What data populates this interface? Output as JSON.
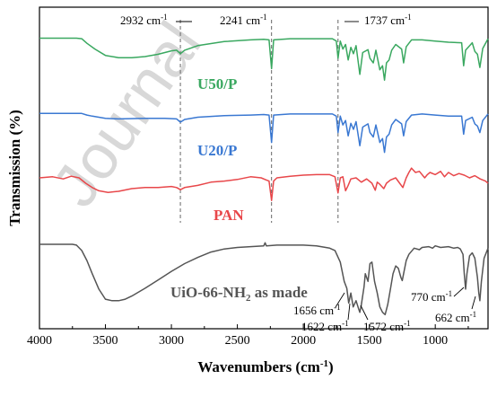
{
  "chart_data": {
    "type": "line",
    "xlabel": "Wavenumbers (cm",
    "xlabel_sup": "-1",
    "xlabel_end": ")",
    "ylabel": "Transmission (%)",
    "xlim": [
      4000,
      600
    ],
    "x_reversed": true,
    "xticks": [
      "4000",
      "3500",
      "3000",
      "2500",
      "2000",
      "1500",
      "1000"
    ],
    "xtick_values": [
      4000,
      3500,
      3000,
      2500,
      2000,
      1500,
      1000
    ],
    "y_tick_labels": false,
    "watermark": "Journal",
    "series": [
      {
        "name": "U50/P",
        "color": "#3aa860",
        "label_parts": [
          "U50/P"
        ],
        "points": [
          [
            4000,
            0.93
          ],
          [
            3800,
            0.93
          ],
          [
            3720,
            0.93
          ],
          [
            3680,
            0.92
          ],
          [
            3640,
            0.84
          ],
          [
            3580,
            0.74
          ],
          [
            3500,
            0.63
          ],
          [
            3400,
            0.59
          ],
          [
            3300,
            0.59
          ],
          [
            3200,
            0.61
          ],
          [
            3100,
            0.65
          ],
          [
            3000,
            0.71
          ],
          [
            2960,
            0.72
          ],
          [
            2932,
            0.66
          ],
          [
            2900,
            0.72
          ],
          [
            2800,
            0.8
          ],
          [
            2600,
            0.87
          ],
          [
            2400,
            0.9
          ],
          [
            2300,
            0.91
          ],
          [
            2260,
            0.9
          ],
          [
            2241,
            0.4
          ],
          [
            2225,
            0.9
          ],
          [
            2100,
            0.92
          ],
          [
            1900,
            0.92
          ],
          [
            1780,
            0.92
          ],
          [
            1750,
            0.88
          ],
          [
            1737,
            0.58
          ],
          [
            1720,
            0.88
          ],
          [
            1700,
            0.74
          ],
          [
            1680,
            0.82
          ],
          [
            1660,
            0.55
          ],
          [
            1640,
            0.77
          ],
          [
            1620,
            0.66
          ],
          [
            1600,
            0.8
          ],
          [
            1572,
            0.3
          ],
          [
            1550,
            0.68
          ],
          [
            1510,
            0.73
          ],
          [
            1495,
            0.58
          ],
          [
            1470,
            0.5
          ],
          [
            1450,
            0.72
          ],
          [
            1420,
            0.38
          ],
          [
            1400,
            0.45
          ],
          [
            1385,
            0.2
          ],
          [
            1370,
            0.5
          ],
          [
            1350,
            0.55
          ],
          [
            1330,
            0.72
          ],
          [
            1300,
            0.82
          ],
          [
            1255,
            0.74
          ],
          [
            1240,
            0.5
          ],
          [
            1220,
            0.78
          ],
          [
            1180,
            0.9
          ],
          [
            1100,
            0.9
          ],
          [
            1000,
            0.88
          ],
          [
            900,
            0.86
          ],
          [
            800,
            0.85
          ],
          [
            785,
            0.45
          ],
          [
            770,
            0.72
          ],
          [
            720,
            0.85
          ],
          [
            700,
            0.7
          ],
          [
            680,
            0.65
          ],
          [
            662,
            0.42
          ],
          [
            640,
            0.75
          ],
          [
            600,
            0.92
          ]
        ]
      },
      {
        "name": "U20/P",
        "color": "#3a78d2",
        "label_parts": [
          "U20/P"
        ],
        "points": [
          [
            4000,
            0.93
          ],
          [
            3800,
            0.93
          ],
          [
            3680,
            0.93
          ],
          [
            3640,
            0.9
          ],
          [
            3600,
            0.88
          ],
          [
            3500,
            0.84
          ],
          [
            3400,
            0.83
          ],
          [
            3200,
            0.84
          ],
          [
            3050,
            0.84
          ],
          [
            2960,
            0.83
          ],
          [
            2932,
            0.77
          ],
          [
            2900,
            0.82
          ],
          [
            2800,
            0.86
          ],
          [
            2600,
            0.89
          ],
          [
            2400,
            0.9
          ],
          [
            2300,
            0.91
          ],
          [
            2260,
            0.9
          ],
          [
            2241,
            0.4
          ],
          [
            2225,
            0.9
          ],
          [
            2100,
            0.92
          ],
          [
            1900,
            0.92
          ],
          [
            1780,
            0.92
          ],
          [
            1750,
            0.88
          ],
          [
            1737,
            0.58
          ],
          [
            1720,
            0.88
          ],
          [
            1700,
            0.72
          ],
          [
            1680,
            0.8
          ],
          [
            1660,
            0.52
          ],
          [
            1640,
            0.75
          ],
          [
            1620,
            0.64
          ],
          [
            1600,
            0.78
          ],
          [
            1572,
            0.34
          ],
          [
            1550,
            0.68
          ],
          [
            1510,
            0.74
          ],
          [
            1495,
            0.58
          ],
          [
            1470,
            0.5
          ],
          [
            1450,
            0.72
          ],
          [
            1420,
            0.4
          ],
          [
            1400,
            0.47
          ],
          [
            1385,
            0.22
          ],
          [
            1370,
            0.5
          ],
          [
            1350,
            0.55
          ],
          [
            1330,
            0.72
          ],
          [
            1300,
            0.82
          ],
          [
            1255,
            0.74
          ],
          [
            1240,
            0.52
          ],
          [
            1220,
            0.78
          ],
          [
            1180,
            0.9
          ],
          [
            1100,
            0.92
          ],
          [
            1000,
            0.9
          ],
          [
            900,
            0.88
          ],
          [
            800,
            0.88
          ],
          [
            785,
            0.55
          ],
          [
            770,
            0.8
          ],
          [
            720,
            0.86
          ],
          [
            700,
            0.74
          ],
          [
            680,
            0.7
          ],
          [
            662,
            0.58
          ],
          [
            640,
            0.8
          ],
          [
            600,
            0.92
          ]
        ]
      },
      {
        "name": "PAN",
        "color": "#e8474a",
        "label_parts": [
          "PAN"
        ],
        "points": [
          [
            4000,
            0.8
          ],
          [
            3900,
            0.82
          ],
          [
            3820,
            0.78
          ],
          [
            3760,
            0.83
          ],
          [
            3700,
            0.8
          ],
          [
            3650,
            0.7
          ],
          [
            3600,
            0.62
          ],
          [
            3550,
            0.56
          ],
          [
            3480,
            0.53
          ],
          [
            3400,
            0.55
          ],
          [
            3300,
            0.6
          ],
          [
            3200,
            0.62
          ],
          [
            3100,
            0.62
          ],
          [
            3000,
            0.64
          ],
          [
            2960,
            0.62
          ],
          [
            2932,
            0.58
          ],
          [
            2900,
            0.62
          ],
          [
            2800,
            0.66
          ],
          [
            2700,
            0.72
          ],
          [
            2600,
            0.74
          ],
          [
            2500,
            0.77
          ],
          [
            2400,
            0.82
          ],
          [
            2320,
            0.8
          ],
          [
            2280,
            0.76
          ],
          [
            2260,
            0.74
          ],
          [
            2241,
            0.38
          ],
          [
            2225,
            0.74
          ],
          [
            2200,
            0.8
          ],
          [
            2100,
            0.83
          ],
          [
            2000,
            0.85
          ],
          [
            1900,
            0.86
          ],
          [
            1800,
            0.86
          ],
          [
            1760,
            0.82
          ],
          [
            1737,
            0.52
          ],
          [
            1720,
            0.8
          ],
          [
            1700,
            0.82
          ],
          [
            1680,
            0.56
          ],
          [
            1660,
            0.66
          ],
          [
            1640,
            0.78
          ],
          [
            1600,
            0.8
          ],
          [
            1560,
            0.72
          ],
          [
            1520,
            0.78
          ],
          [
            1480,
            0.7
          ],
          [
            1455,
            0.57
          ],
          [
            1440,
            0.72
          ],
          [
            1420,
            0.68
          ],
          [
            1390,
            0.6
          ],
          [
            1370,
            0.7
          ],
          [
            1340,
            0.76
          ],
          [
            1300,
            0.8
          ],
          [
            1270,
            0.7
          ],
          [
            1245,
            0.62
          ],
          [
            1220,
            0.8
          ],
          [
            1200,
            0.9
          ],
          [
            1180,
            0.98
          ],
          [
            1150,
            0.9
          ],
          [
            1120,
            0.92
          ],
          [
            1080,
            0.8
          ],
          [
            1060,
            0.86
          ],
          [
            1040,
            0.9
          ],
          [
            1000,
            0.86
          ],
          [
            960,
            0.92
          ],
          [
            930,
            0.82
          ],
          [
            900,
            0.9
          ],
          [
            860,
            0.84
          ],
          [
            820,
            0.88
          ],
          [
            780,
            0.85
          ],
          [
            740,
            0.8
          ],
          [
            700,
            0.84
          ],
          [
            660,
            0.78
          ],
          [
            620,
            0.74
          ],
          [
            600,
            0.7
          ]
        ]
      },
      {
        "name": "UiO-66-NH2 as made",
        "color": "#555555",
        "label_parts": [
          "UiO-66-NH",
          "2",
          " as made"
        ],
        "points": [
          [
            4000,
            0.93
          ],
          [
            3900,
            0.93
          ],
          [
            3800,
            0.93
          ],
          [
            3750,
            0.93
          ],
          [
            3720,
            0.92
          ],
          [
            3680,
            0.85
          ],
          [
            3640,
            0.72
          ],
          [
            3600,
            0.55
          ],
          [
            3550,
            0.35
          ],
          [
            3500,
            0.22
          ],
          [
            3450,
            0.2
          ],
          [
            3400,
            0.2
          ],
          [
            3350,
            0.22
          ],
          [
            3300,
            0.26
          ],
          [
            3200,
            0.36
          ],
          [
            3100,
            0.47
          ],
          [
            3000,
            0.58
          ],
          [
            2900,
            0.68
          ],
          [
            2800,
            0.76
          ],
          [
            2700,
            0.83
          ],
          [
            2600,
            0.87
          ],
          [
            2500,
            0.89
          ],
          [
            2400,
            0.9
          ],
          [
            2300,
            0.91
          ],
          [
            2290,
            0.95
          ],
          [
            2280,
            0.91
          ],
          [
            2200,
            0.92
          ],
          [
            2100,
            0.92
          ],
          [
            2000,
            0.92
          ],
          [
            1900,
            0.91
          ],
          [
            1800,
            0.88
          ],
          [
            1760,
            0.85
          ],
          [
            1720,
            0.7
          ],
          [
            1690,
            0.45
          ],
          [
            1670,
            0.36
          ],
          [
            1656,
            0.17
          ],
          [
            1640,
            0.3
          ],
          [
            1622,
            0.12
          ],
          [
            1600,
            0.2
          ],
          [
            1580,
            0.09
          ],
          [
            1572,
            0.05
          ],
          [
            1560,
            0.15
          ],
          [
            1540,
            0.38
          ],
          [
            1530,
            0.55
          ],
          [
            1510,
            0.45
          ],
          [
            1495,
            0.68
          ],
          [
            1480,
            0.7
          ],
          [
            1460,
            0.45
          ],
          [
            1440,
            0.3
          ],
          [
            1420,
            0.12
          ],
          [
            1400,
            0.05
          ],
          [
            1380,
            0.02
          ],
          [
            1360,
            0.15
          ],
          [
            1340,
            0.35
          ],
          [
            1320,
            0.55
          ],
          [
            1300,
            0.65
          ],
          [
            1280,
            0.62
          ],
          [
            1260,
            0.5
          ],
          [
            1250,
            0.46
          ],
          [
            1240,
            0.55
          ],
          [
            1220,
            0.72
          ],
          [
            1200,
            0.8
          ],
          [
            1160,
            0.88
          ],
          [
            1120,
            0.86
          ],
          [
            1100,
            0.89
          ],
          [
            1050,
            0.9
          ],
          [
            1020,
            0.88
          ],
          [
            1000,
            0.91
          ],
          [
            960,
            0.89
          ],
          [
            900,
            0.9
          ],
          [
            860,
            0.88
          ],
          [
            830,
            0.89
          ],
          [
            810,
            0.87
          ],
          [
            790,
            0.8
          ],
          [
            780,
            0.55
          ],
          [
            770,
            0.35
          ],
          [
            760,
            0.55
          ],
          [
            740,
            0.78
          ],
          [
            720,
            0.82
          ],
          [
            700,
            0.75
          ],
          [
            680,
            0.5
          ],
          [
            670,
            0.3
          ],
          [
            662,
            0.2
          ],
          [
            650,
            0.45
          ],
          [
            630,
            0.75
          ],
          [
            600,
            0.88
          ]
        ]
      }
    ],
    "annotations": [
      {
        "text": "2932 cm",
        "sup": "-1",
        "x": 2932
      },
      {
        "text": "2241 cm",
        "sup": "-1",
        "x": 2241
      },
      {
        "text": "1737 cm",
        "sup": "-1",
        "x": 1737
      },
      {
        "text": "1656 cm",
        "sup": "-1",
        "x": 1656
      },
      {
        "text": "1622 cm",
        "sup": "-1",
        "x": 1622
      },
      {
        "text": "1572 cm",
        "sup": "-1",
        "x": 1572
      },
      {
        "text": "770 cm",
        "sup": "-1",
        "x": 770
      },
      {
        "text": "662 cm",
        "sup": "-1",
        "x": 662
      }
    ]
  }
}
